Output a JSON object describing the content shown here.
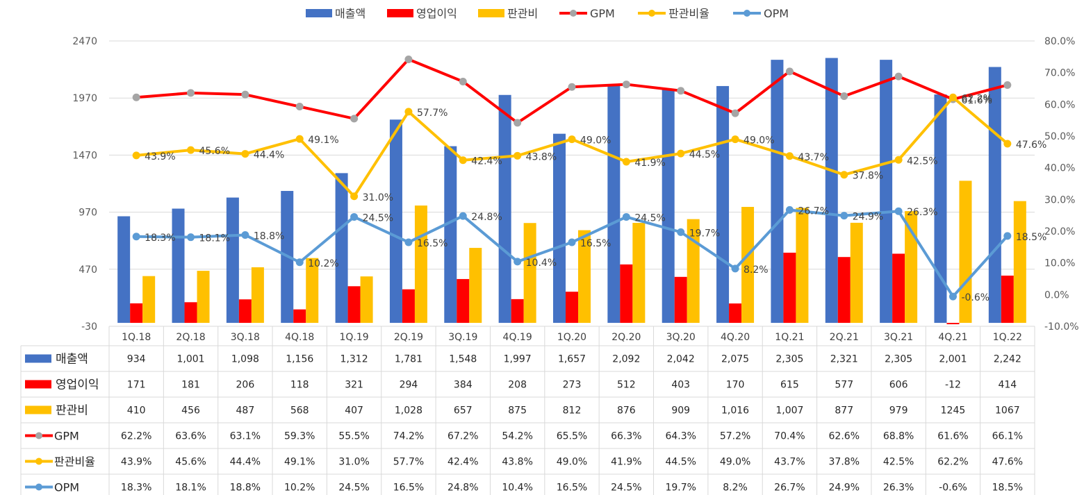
{
  "chart_data": {
    "type": "bar",
    "categories": [
      "1Q.18",
      "2Q.18",
      "3Q.18",
      "4Q.18",
      "1Q.19",
      "2Q.19",
      "3Q.19",
      "4Q.19",
      "1Q.20",
      "2Q.20",
      "3Q.20",
      "4Q.20",
      "1Q.21",
      "2Q.21",
      "3Q.21",
      "4Q.21",
      "1Q.22"
    ],
    "left_axis": {
      "min": -30,
      "max": 2470,
      "ticks": [
        -30,
        470,
        970,
        1470,
        1970,
        2470
      ]
    },
    "right_axis": {
      "min": -10,
      "max": 80,
      "ticks": [
        "-10.0%",
        "0.0%",
        "10.0%",
        "20.0%",
        "30.0%",
        "40.0%",
        "50.0%",
        "60.0%",
        "70.0%",
        "80.0%"
      ]
    },
    "bar_series": [
      {
        "name": "매출액",
        "color": "#4472C4",
        "values": [
          934,
          1001,
          1098,
          1156,
          1312,
          1781,
          1548,
          1997,
          1657,
          2092,
          2042,
          2075,
          2305,
          2321,
          2305,
          2001,
          2242
        ],
        "labels": [
          "934",
          "1,001",
          "1,098",
          "1,156",
          "1,312",
          "1,781",
          "1,548",
          "1,997",
          "1,657",
          "2,092",
          "2,042",
          "2,075",
          "2,305",
          "2,321",
          "2,305",
          "2,001",
          "2,242"
        ]
      },
      {
        "name": "영업이익",
        "color": "#FF0000",
        "values": [
          171,
          181,
          206,
          118,
          321,
          294,
          384,
          208,
          273,
          512,
          403,
          170,
          615,
          577,
          606,
          -12,
          414
        ],
        "labels": [
          "171",
          "181",
          "206",
          "118",
          "321",
          "294",
          "384",
          "208",
          "273",
          "512",
          "403",
          "170",
          "615",
          "577",
          "606",
          "-12",
          "414"
        ]
      },
      {
        "name": "판관비",
        "color": "#FFC000",
        "values": [
          410,
          456,
          487,
          568,
          407,
          1028,
          657,
          875,
          812,
          876,
          909,
          1016,
          1007,
          877,
          979,
          1245,
          1067
        ],
        "labels": [
          "410",
          "456",
          "487",
          "568",
          "407",
          "1,028",
          "657",
          "875",
          "812",
          "876",
          "909",
          "1,016",
          "1,007",
          "877",
          "979",
          "1245",
          "1067"
        ]
      }
    ],
    "line_series": [
      {
        "name": "GPM",
        "color": "#FF0000",
        "marker": "#A5A5A5",
        "values": [
          62.2,
          63.6,
          63.1,
          59.3,
          55.5,
          74.2,
          67.2,
          54.2,
          65.5,
          66.3,
          64.3,
          57.2,
          70.4,
          62.6,
          68.8,
          61.6,
          66.1
        ],
        "labels": [
          "62.2%",
          "63.6%",
          "63.1%",
          "59.3%",
          "55.5%",
          "74.2%",
          "67.2%",
          "54.2%",
          "65.5%",
          "66.3%",
          "64.3%",
          "57.2%",
          "70.4%",
          "62.6%",
          "68.8%",
          "61.6%",
          "66.1%"
        ]
      },
      {
        "name": "판관비율",
        "color": "#FFC000",
        "marker": "#FFC000",
        "values": [
          43.9,
          45.6,
          44.4,
          49.1,
          31.0,
          57.7,
          42.4,
          43.8,
          49.0,
          41.9,
          44.5,
          49.0,
          43.7,
          37.8,
          42.5,
          62.2,
          47.6
        ],
        "labels": [
          "43.9%",
          "45.6%",
          "44.4%",
          "49.1%",
          "31.0%",
          "57.7%",
          "42.4%",
          "43.8%",
          "49.0%",
          "41.9%",
          "44.5%",
          "49.0%",
          "43.7%",
          "37.8%",
          "42.5%",
          "62.2%",
          "47.6%"
        ]
      },
      {
        "name": "OPM",
        "color": "#5B9BD5",
        "marker": "#5B9BD5",
        "values": [
          18.3,
          18.1,
          18.8,
          10.2,
          24.5,
          16.5,
          24.8,
          10.4,
          16.5,
          24.5,
          19.7,
          8.2,
          26.7,
          24.9,
          26.3,
          -0.6,
          18.5
        ],
        "labels": [
          "18.3%",
          "18.1%",
          "18.8%",
          "10.2%",
          "24.5%",
          "16.5%",
          "24.8%",
          "10.4%",
          "16.5%",
          "24.5%",
          "19.7%",
          "8.2%",
          "26.7%",
          "24.9%",
          "26.3%",
          "-0.6%",
          "18.5%"
        ]
      }
    ],
    "legend": [
      "매출액",
      "영업이익",
      "판관비",
      "GPM",
      "판관비율",
      "OPM"
    ],
    "legend_position": "top",
    "data_table": true,
    "grid": true
  }
}
